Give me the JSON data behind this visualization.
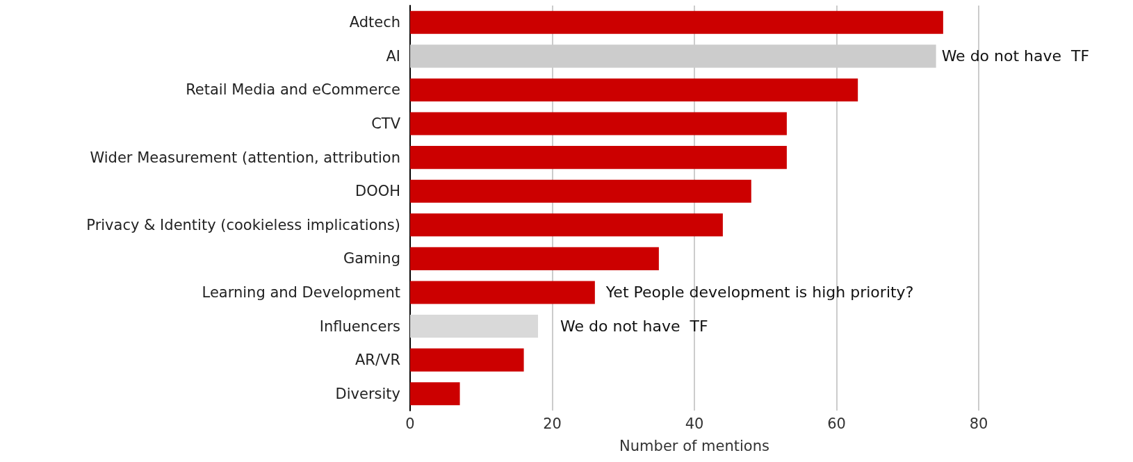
{
  "chart_data": {
    "type": "bar",
    "orientation": "horizontal",
    "xlabel": "Number of mentions",
    "categories": [
      "Adtech",
      "AI",
      "Retail Media and eCommerce",
      "CTV",
      "Wider Measurement (attention, attribution",
      "DOOH",
      "Privacy & Identity (cookieless implications)",
      "Gaming",
      "Learning and Development",
      "Influencers",
      "AR/VR",
      "Diversity"
    ],
    "values": [
      75,
      74,
      63,
      53,
      53,
      48,
      44,
      35,
      26,
      18,
      16,
      7
    ],
    "colors": [
      "#cc0000",
      "#cccccc",
      "#cc0000",
      "#cc0000",
      "#cc0000",
      "#cc0000",
      "#cc0000",
      "#cc0000",
      "#cc0000",
      "#d9d9d9",
      "#cc0000",
      "#cc0000"
    ],
    "xlim": [
      0,
      80
    ],
    "xticks": [
      0,
      20,
      40,
      60,
      80
    ],
    "grid": "x",
    "annotations": [
      "We do not have  TF",
      "Yet People development is high priority?",
      "We do not have  TF"
    ]
  }
}
